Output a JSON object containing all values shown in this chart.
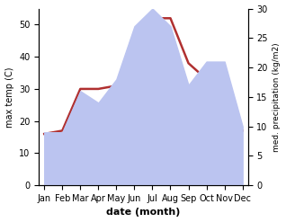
{
  "months": [
    "Jan",
    "Feb",
    "Mar",
    "Apr",
    "May",
    "Jun",
    "Jul",
    "Aug",
    "Sep",
    "Oct",
    "Nov",
    "Dec"
  ],
  "temp": [
    16,
    17,
    30,
    30,
    31,
    44,
    52,
    52,
    38,
    33,
    18,
    17
  ],
  "precip": [
    9,
    9,
    16,
    14,
    18,
    27,
    30,
    27,
    17,
    21,
    21,
    10
  ],
  "temp_color": "#b03030",
  "precip_fill_color": "#bbc4f0",
  "ylabel_left": "max temp (C)",
  "ylabel_right": "med. precipitation (kg/m2)",
  "xlabel": "date (month)",
  "ylim_left": [
    0,
    55
  ],
  "ylim_right": [
    0,
    30
  ],
  "bg_color": "#ffffff"
}
